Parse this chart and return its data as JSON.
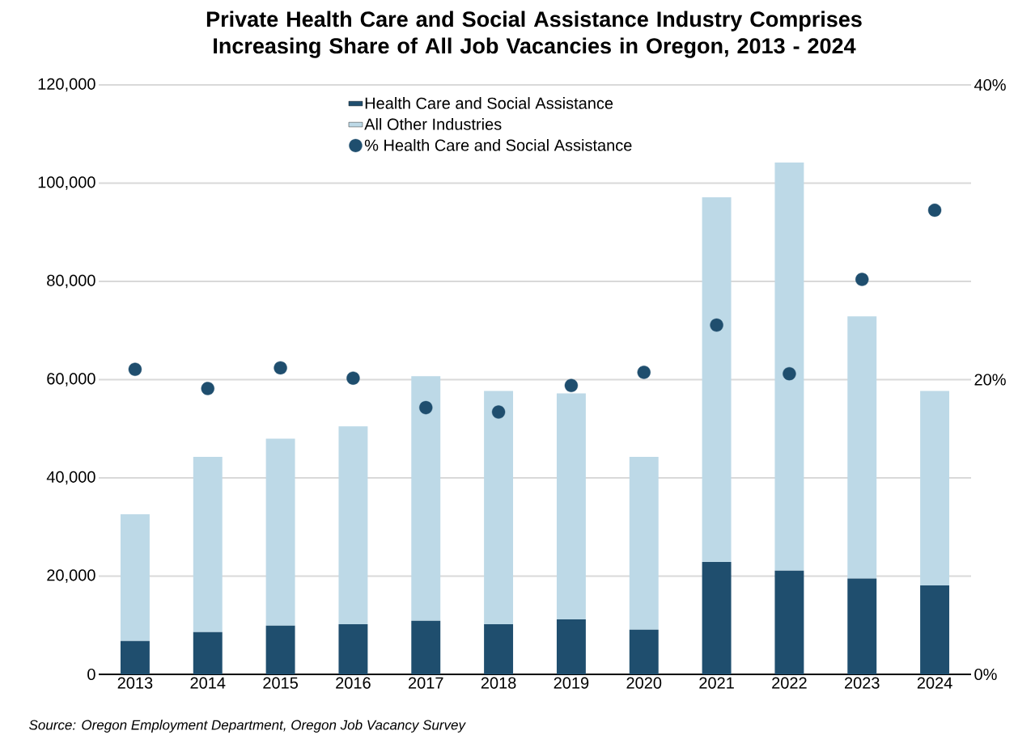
{
  "chart_data": {
    "type": "bar",
    "stacked": true,
    "title": "Private Health Care and Social Assistance Industry Comprises Increasing Share of All Job Vacancies in Oregon, 2013 - 2024",
    "categories": [
      "2013",
      "2014",
      "2015",
      "2016",
      "2017",
      "2018",
      "2019",
      "2020",
      "2021",
      "2022",
      "2023",
      "2024"
    ],
    "series": [
      {
        "name": "Health Care and Social Assistance",
        "color": "#1f4e6e",
        "values": [
          6800,
          8600,
          9900,
          10200,
          10900,
          10200,
          11200,
          9100,
          22900,
          21100,
          19500,
          18100
        ]
      },
      {
        "name": "All Other Industries",
        "color": "#bdd9e7",
        "values": [
          25800,
          35700,
          38100,
          40300,
          49800,
          47500,
          46000,
          35200,
          74200,
          83100,
          53400,
          39600
        ]
      },
      {
        "name": "% Health Care and Social Assistance",
        "type": "scatter",
        "axis": "y2",
        "color": "#1f4e6e",
        "values": [
          20.7,
          19.4,
          20.8,
          20.1,
          18.1,
          17.8,
          19.6,
          20.5,
          23.7,
          20.4,
          26.8,
          31.5
        ]
      }
    ],
    "ylim": [
      0,
      120000
    ],
    "yticks": [
      {
        "value": 0,
        "label": "0"
      },
      {
        "value": 20000,
        "label": "20,000"
      },
      {
        "value": 40000,
        "label": "40,000"
      },
      {
        "value": 60000,
        "label": "60,000"
      },
      {
        "value": 80000,
        "label": "80,000"
      },
      {
        "value": 100000,
        "label": "100,000"
      },
      {
        "value": 120000,
        "label": "120,000"
      }
    ],
    "y2lim": [
      0,
      40
    ],
    "y2ticks": [
      {
        "value": 0,
        "label": "0%"
      },
      {
        "value": 20,
        "label": "20%"
      },
      {
        "value": 40,
        "label": "40%"
      }
    ],
    "grid": "y",
    "marker": "circle",
    "legend": "top",
    "annotations": [
      "Source: Oregon Employment Department, Oregon Job Vacancy Survey"
    ]
  }
}
